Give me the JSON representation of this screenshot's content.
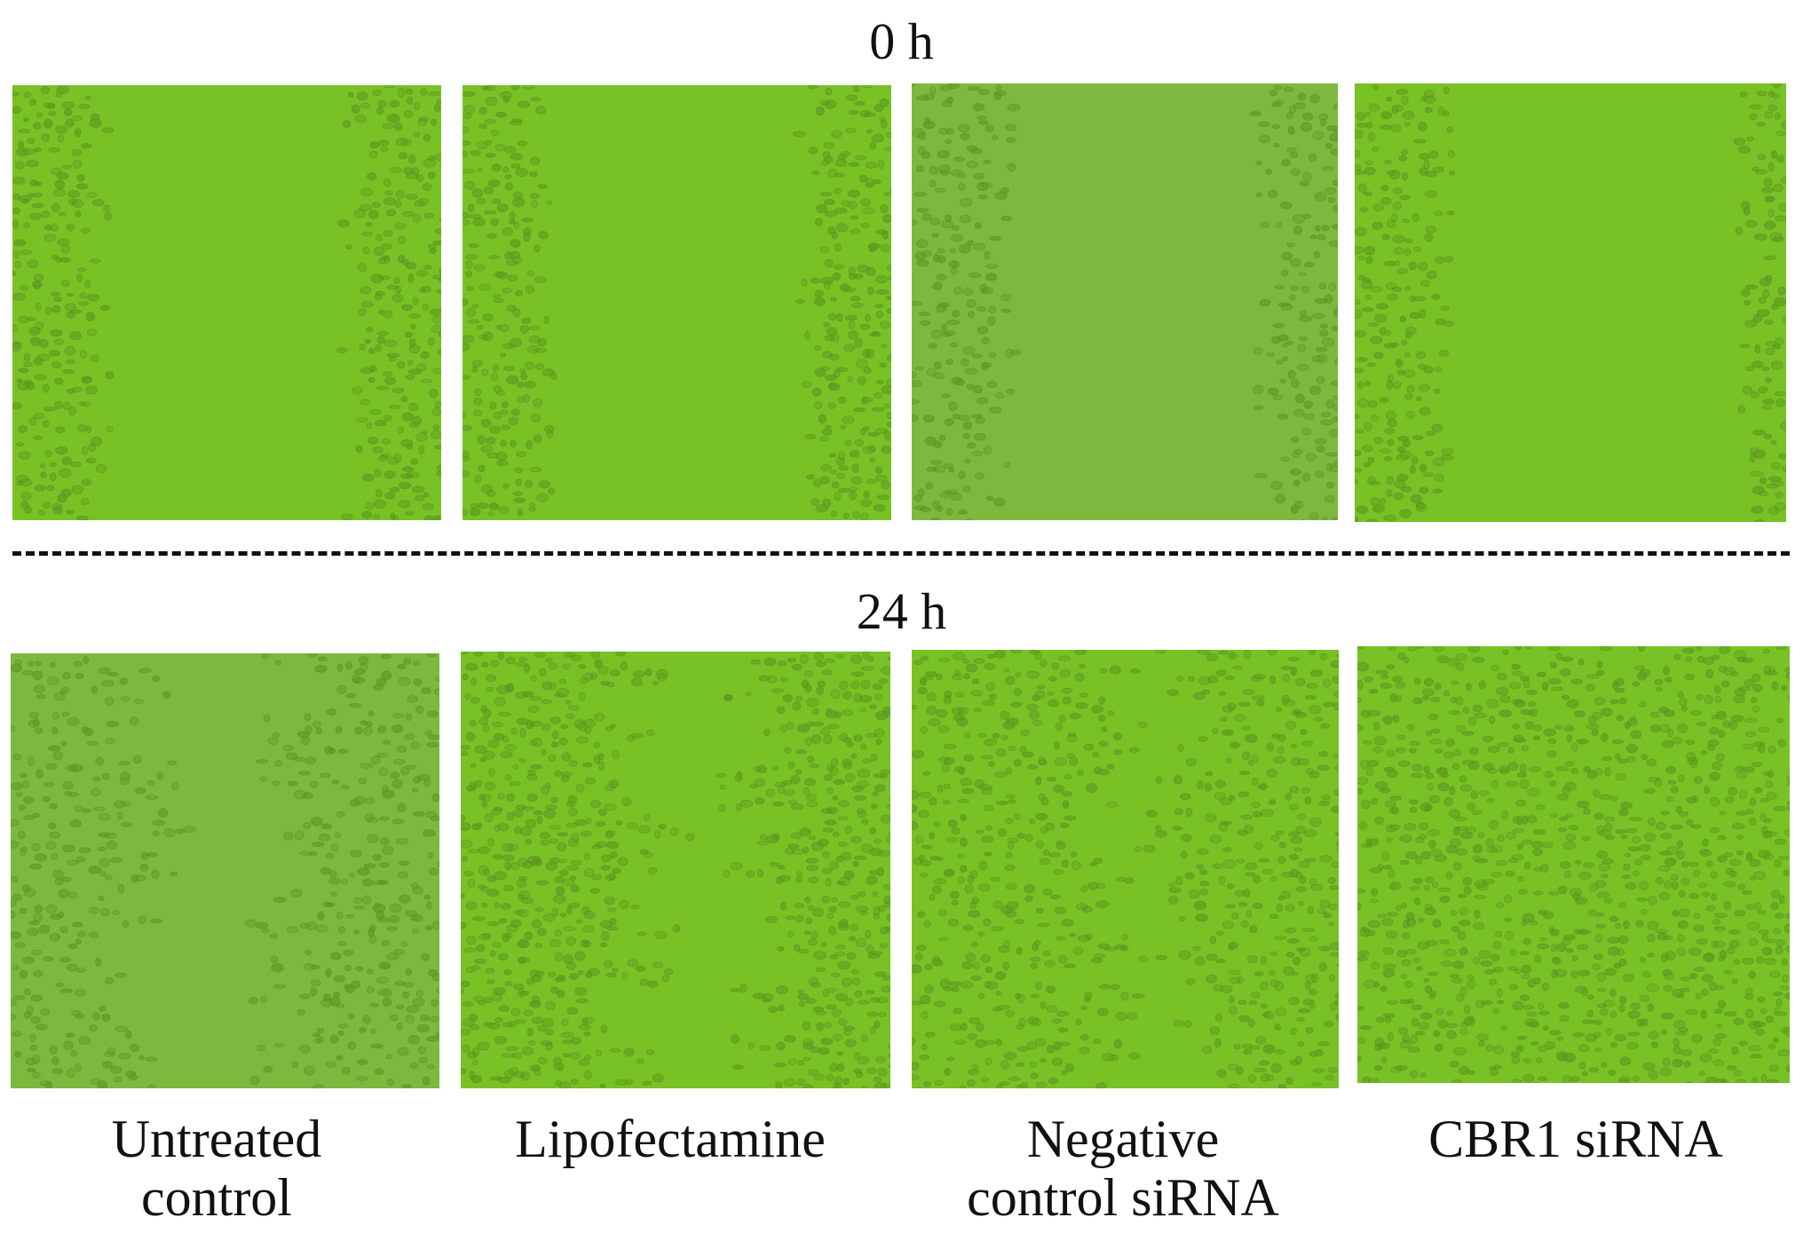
{
  "timepoints": [
    {
      "label": "0 h"
    },
    {
      "label": "24 h"
    }
  ],
  "conditions": [
    {
      "label": "Untreated\ncontrol"
    },
    {
      "label": "Lipofectamine"
    },
    {
      "label": "Negative\ncontrol siRNA"
    },
    {
      "label": "CBR1 siRNA"
    }
  ],
  "colors": {
    "field_bright": "#78c225",
    "field_pale": "#7eb83e",
    "cells": "#5f9a22",
    "cell_outline": "#4f8619"
  },
  "panels_0h": [
    {
      "condition": "Untreated control",
      "gap_state": "open-wide"
    },
    {
      "condition": "Lipofectamine",
      "gap_state": "open-wide"
    },
    {
      "condition": "Negative control siRNA",
      "gap_state": "open-wide"
    },
    {
      "condition": "CBR1 siRNA",
      "gap_state": "open-wide"
    }
  ],
  "panels_24h": [
    {
      "condition": "Untreated control",
      "gap_state": "partially-closed"
    },
    {
      "condition": "Lipofectamine",
      "gap_state": "partially-closed"
    },
    {
      "condition": "Negative control siRNA",
      "gap_state": "mostly-closed"
    },
    {
      "condition": "CBR1 siRNA",
      "gap_state": "closed"
    }
  ]
}
